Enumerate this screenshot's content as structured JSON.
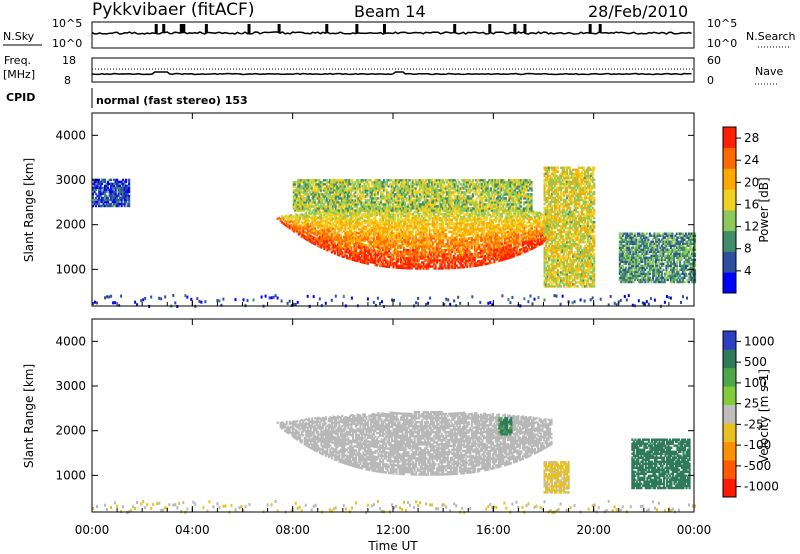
{
  "header": {
    "station": "Pykkvibaer (fitACF)",
    "beam": "Beam 14",
    "date": "28/Feb/2010"
  },
  "top_panels": {
    "nsky_label": "N.Sky",
    "nsky_ticks": [
      "10^5",
      "10^0"
    ],
    "nsky_right_ticks": [
      "10^5",
      "10^0"
    ],
    "nsearch_label": "N.Search",
    "freq_label": "Freq.",
    "freq_unit": "[MHz]",
    "freq_ticks": [
      "18",
      "8"
    ],
    "nave_ticks": [
      "60",
      "0"
    ],
    "nave_label": "Nave",
    "cpid_label": "CPID",
    "cpid_text": "normal (fast stereo) 153"
  },
  "colors": {
    "power_scale": [
      "#0000ff",
      "#2e4fa0",
      "#3e8c6a",
      "#8cc85a",
      "#f0d020",
      "#ffa800",
      "#ff6a00",
      "#ff2000"
    ],
    "velocity_scale": [
      "#2a40c0",
      "#2e7a5a",
      "#4da84a",
      "#82cc3a",
      "#bebebe",
      "#e8c020",
      "#ff9000",
      "#ff5a00",
      "#ff1a00"
    ],
    "ground_scatter": "#b8b8b8"
  },
  "chart_data": [
    {
      "type": "heatmap",
      "name_parameter": "power",
      "x": {
        "label": "Time UT",
        "range": [
          "00:00",
          "24:00"
        ],
        "ticks": [
          "00:00",
          "04:00",
          "08:00",
          "12:00",
          "16:00",
          "20:00",
          "00:00"
        ]
      },
      "y": {
        "label": "Slant Range [km]",
        "range": [
          180,
          4500
        ],
        "ticks": [
          1000,
          2000,
          3000,
          4000
        ]
      },
      "colorbar": {
        "label": "Power [dB]",
        "ticks": [
          4,
          8,
          12,
          16,
          20,
          24,
          28
        ],
        "range": [
          0,
          30
        ]
      },
      "regions": [
        {
          "t_start": 7.3,
          "t_end": 18.3,
          "range_low": 1000,
          "range_high": 2400,
          "mean_power": 24
        },
        {
          "t_start": 8.0,
          "t_end": 17.5,
          "range_low": 2300,
          "range_high": 3000,
          "mean_power": 14
        },
        {
          "t_start": 0.0,
          "t_end": 1.5,
          "range_low": 2400,
          "range_high": 3000,
          "mean_power": 5
        },
        {
          "t_start": 18.0,
          "t_end": 20.0,
          "range_low": 600,
          "range_high": 3300,
          "mean_power": 16
        },
        {
          "t_start": 21.0,
          "t_end": 24.0,
          "range_low": 700,
          "range_high": 1800,
          "mean_power": 10
        }
      ]
    },
    {
      "type": "heatmap",
      "name_parameter": "velocity",
      "x": {
        "label": "Time UT",
        "range": [
          "00:00",
          "24:00"
        ],
        "ticks": [
          "00:00",
          "04:00",
          "08:00",
          "12:00",
          "16:00",
          "20:00",
          "00:00"
        ]
      },
      "y": {
        "label": "Slant Range [km]",
        "range": [
          180,
          4500
        ],
        "ticks": [
          1000,
          2000,
          3000,
          4000
        ]
      },
      "colorbar": {
        "label": "Velocity [m s-1]",
        "ticks": [
          1000,
          500,
          100,
          25,
          -25,
          -100,
          -500,
          -1000
        ],
        "range": [
          -1000,
          1000
        ]
      },
      "regions": [
        {
          "t_start": 7.3,
          "t_end": 18.3,
          "range_low": 1000,
          "range_high": 2400,
          "mean_velocity": 0,
          "ground_scatter": true
        },
        {
          "t_start": 16.2,
          "t_end": 16.7,
          "range_low": 1900,
          "range_high": 2300,
          "mean_velocity": 150
        },
        {
          "t_start": 18.0,
          "t_end": 19.0,
          "range_low": 600,
          "range_high": 1300,
          "mean_velocity": -150
        },
        {
          "t_start": 21.5,
          "t_end": 23.8,
          "range_low": 700,
          "range_high": 1800,
          "mean_velocity": 400
        }
      ]
    }
  ]
}
